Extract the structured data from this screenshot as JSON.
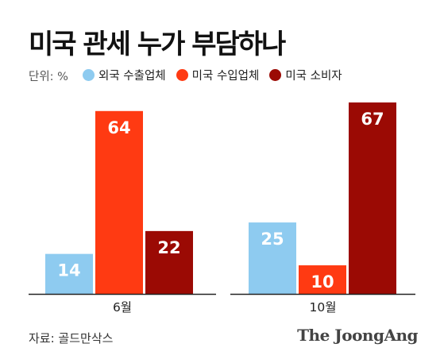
{
  "title": "미국 관세 누가 부담하나",
  "unit_label": "단위: %",
  "source": "자료: 골드만삭스",
  "brand": "The JoongAng",
  "colors": {
    "series": [
      "#8ecbf0",
      "#ff3a12",
      "#9b0a04"
    ],
    "value_label": "#ffffff",
    "axis": "#222222"
  },
  "chart_data": {
    "type": "bar",
    "title": "미국 관세 누가 부담하나",
    "categories": [
      "6월",
      "10월"
    ],
    "series": [
      {
        "name": "외국 수출업체",
        "values": [
          14,
          25
        ]
      },
      {
        "name": "미국 수입업체",
        "values": [
          64,
          10
        ]
      },
      {
        "name": "미국 소비자",
        "values": [
          22,
          67
        ]
      }
    ],
    "ylim": [
      0,
      67
    ],
    "grid": false,
    "legend": "top-left",
    "data_labels": true
  }
}
